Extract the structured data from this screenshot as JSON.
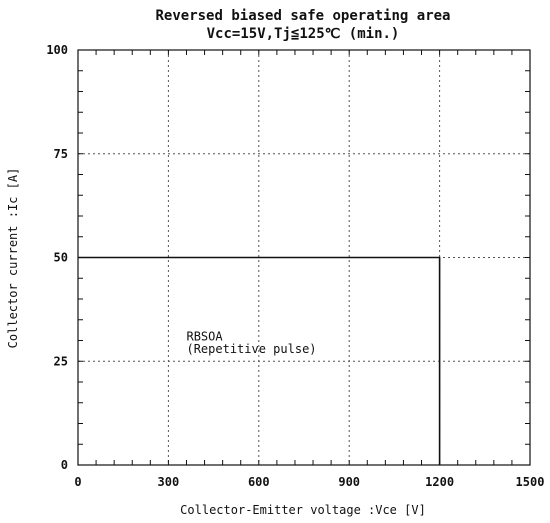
{
  "chart_data": {
    "type": "line",
    "title": "Reversed biased safe operating area",
    "subtitle": "Vcc=15V,Tj≦125℃ (min.)",
    "xlabel": "Collector-Emitter voltage :Vce [V]",
    "ylabel": "Collector current :Ic [A]",
    "xlim": [
      0,
      1500
    ],
    "ylim": [
      0,
      100
    ],
    "x_ticks": [
      0,
      300,
      600,
      900,
      1200,
      1500
    ],
    "y_ticks": [
      0,
      25,
      50,
      75,
      100
    ],
    "grid": true,
    "series": [
      {
        "x": [
          0,
          1200,
          1200
        ],
        "y": [
          50,
          50,
          0
        ]
      }
    ],
    "annotations": [
      {
        "text": "RBSOA",
        "x": 360,
        "y": 30
      },
      {
        "text": "(Repetitive pulse)",
        "x": 360,
        "y": 27
      }
    ]
  },
  "colors": {
    "line": "#111111",
    "grid": "#555555",
    "background": "#ffffff"
  }
}
